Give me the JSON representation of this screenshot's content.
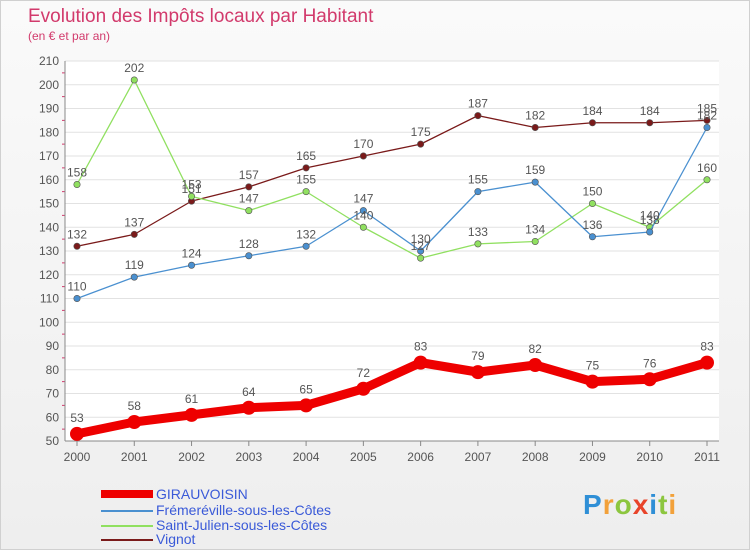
{
  "title": "Evolution des Impôts locaux par Habitant",
  "subtitle": "(en € et par an)",
  "brand": {
    "logo_text": "Proxiti",
    "letters": [
      {
        "ch": "P",
        "color": "#2f8fd6"
      },
      {
        "ch": "r",
        "color": "#f2a13a"
      },
      {
        "ch": "o",
        "color": "#8cc63f"
      },
      {
        "ch": "x",
        "color": "#e8442a"
      },
      {
        "ch": "i",
        "color": "#2f8fd6"
      },
      {
        "ch": "t",
        "color": "#8cc63f"
      },
      {
        "ch": "i",
        "color": "#f2a13a"
      }
    ]
  },
  "chart_data": {
    "type": "line",
    "title": "Evolution des Impôts locaux par Habitant",
    "subtitle": "(en € et par an)",
    "xlabel": "",
    "ylabel": "",
    "x": [
      "2000",
      "2001",
      "2002",
      "2003",
      "2004",
      "2005",
      "2006",
      "2007",
      "2008",
      "2009",
      "2010",
      "2011"
    ],
    "ylim": [
      50,
      210
    ],
    "yticks": [
      50,
      60,
      70,
      80,
      90,
      100,
      110,
      120,
      130,
      140,
      150,
      160,
      170,
      180,
      190,
      200,
      210
    ],
    "grid": "horizontal",
    "legend_position": "bottom-left",
    "series": [
      {
        "name": "GIRAUVOISIN",
        "color": "#ee0000",
        "values": [
          53,
          58,
          61,
          64,
          65,
          72,
          83,
          79,
          82,
          75,
          76,
          83
        ]
      },
      {
        "name": "Frémeréville-sous-les-Côtes",
        "color": "#4a90d0",
        "values": [
          110,
          119,
          124,
          128,
          132,
          147,
          130,
          155,
          159,
          136,
          138,
          182
        ]
      },
      {
        "name": "Saint-Julien-sous-les-Côtes",
        "color": "#90e060",
        "values": [
          158,
          202,
          153,
          147,
          155,
          140,
          127,
          133,
          134,
          150,
          140,
          160
        ]
      },
      {
        "name": "Vignot",
        "color": "#7a1a1a",
        "values": [
          132,
          137,
          151,
          157,
          165,
          170,
          175,
          187,
          182,
          184,
          184,
          185
        ]
      }
    ]
  }
}
